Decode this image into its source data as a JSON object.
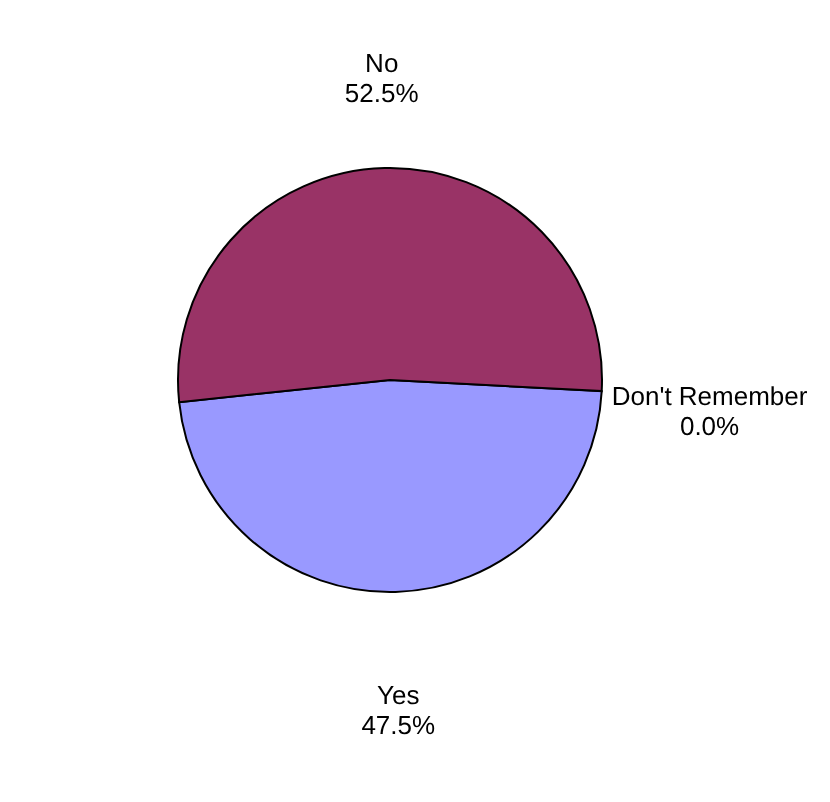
{
  "chart_data": {
    "type": "pie",
    "categories": [
      "Don't Remember",
      "Yes",
      "No"
    ],
    "values": [
      0.0,
      47.5,
      52.5
    ],
    "colors": [
      "#ffffcc",
      "#9999ff",
      "#993366"
    ],
    "value_labels": [
      "0.0%",
      "47.5%",
      "52.5%"
    ],
    "legend": false
  }
}
